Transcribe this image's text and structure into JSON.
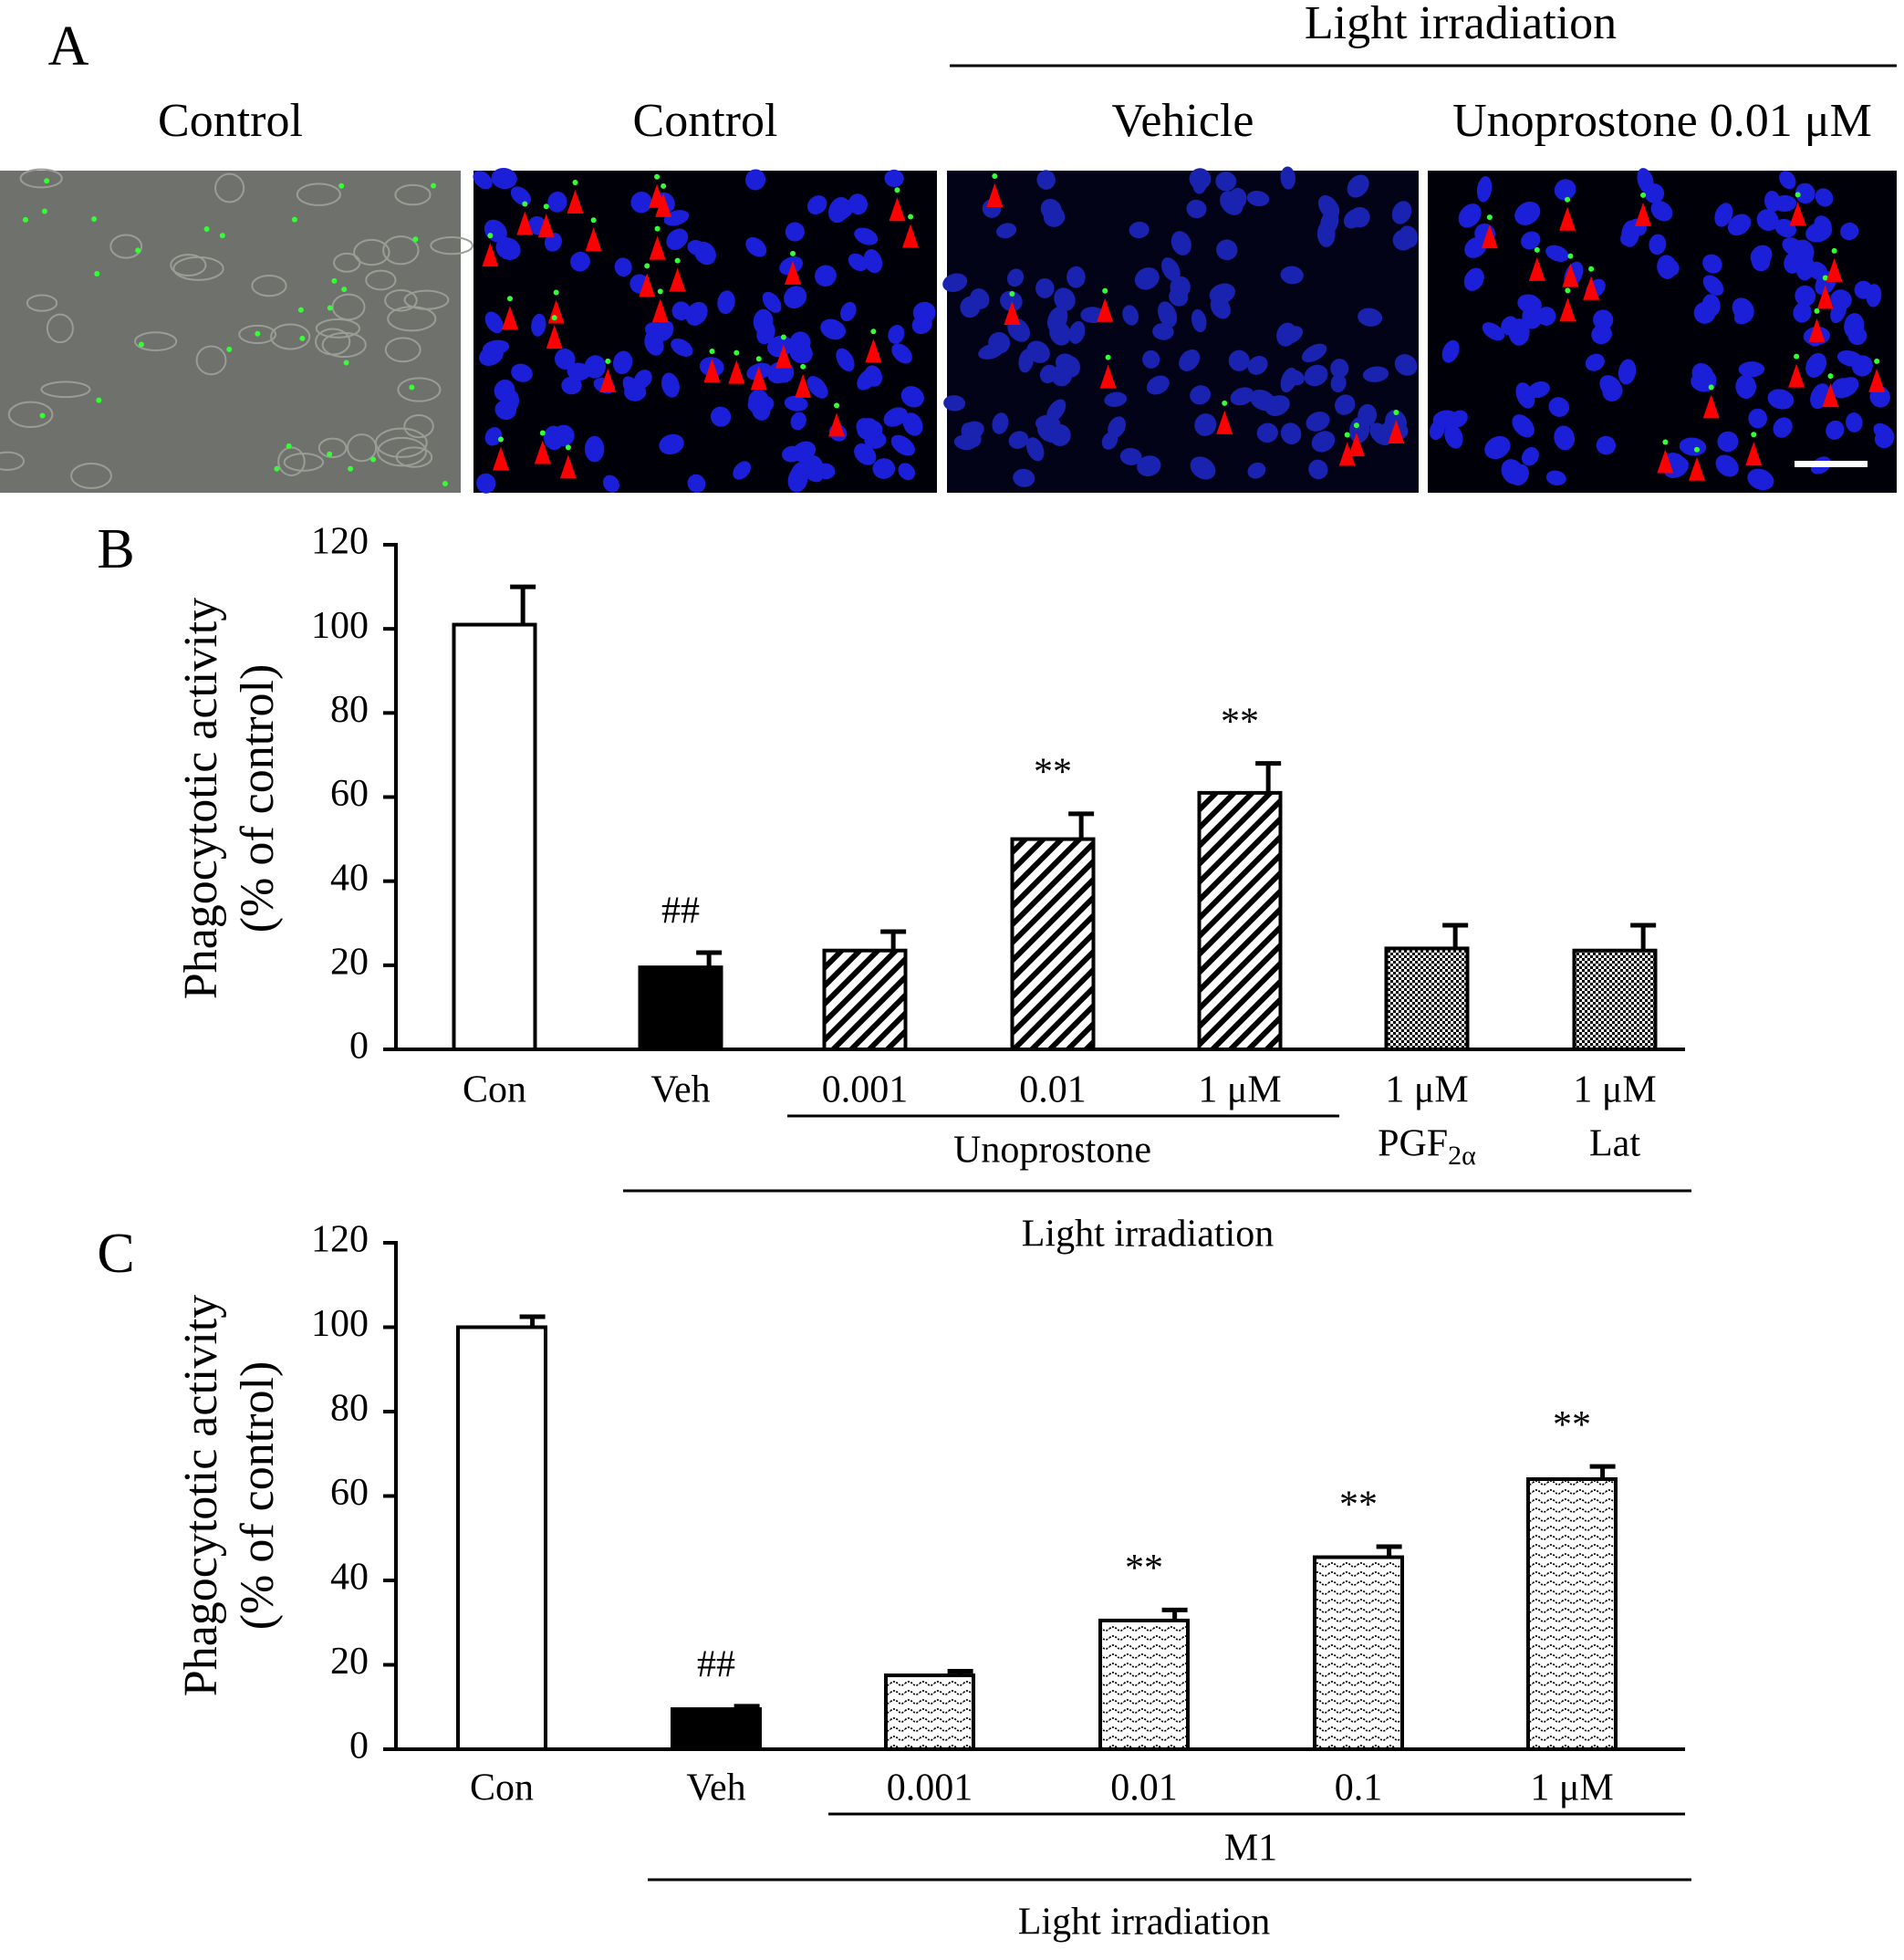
{
  "panel_a": {
    "label": "A",
    "group_label": "Light irradiation",
    "image_titles": [
      "Control",
      "Control",
      "Vehicle",
      "Unoprostone 0.01 μM"
    ]
  },
  "chart_data": [
    {
      "type": "bar",
      "panel_label": "B",
      "y_label": [
        "Phagocytotic activity",
        "(% of control)"
      ],
      "categories": [
        "Con",
        "Veh",
        "0.001",
        "0.01",
        "1 μM",
        "1 μM",
        "1 μM"
      ],
      "category_sublabels": [
        null,
        null,
        null,
        null,
        null,
        {
          "text": "PGF",
          "subscript": "2α"
        },
        {
          "text": "Lat"
        }
      ],
      "values": [
        101,
        19.5,
        23.5,
        50,
        61,
        24,
        23.5
      ],
      "errors": [
        9,
        3.5,
        4.5,
        6,
        7,
        5.5,
        6
      ],
      "patterns": [
        "white",
        "black",
        "hatch",
        "hatch",
        "hatch",
        "dots",
        "dots"
      ],
      "value_annotations": [
        null,
        "##",
        null,
        "**",
        "**",
        null,
        null
      ],
      "group_labels": [
        "Unoprostone",
        "Light irradiation"
      ],
      "ylim": [
        0,
        120
      ],
      "yticks": [
        0,
        20,
        40,
        60,
        80,
        100,
        120
      ]
    },
    {
      "type": "bar",
      "panel_label": "C",
      "y_label": [
        "Phagocytotic activity",
        "(% of control)"
      ],
      "categories": [
        "Con",
        "Veh",
        "0.001",
        "0.01",
        "0.1",
        "1 μM"
      ],
      "category_sublabels": [
        null,
        null,
        null,
        null,
        null,
        null
      ],
      "values": [
        100,
        9.5,
        17.5,
        30.5,
        45.5,
        64
      ],
      "errors": [
        2.5,
        0.7,
        1,
        2.5,
        2.5,
        3
      ],
      "patterns": [
        "white",
        "black",
        "wave",
        "wave",
        "wave",
        "wave"
      ],
      "value_annotations": [
        null,
        "##",
        null,
        "**",
        "**",
        "**"
      ],
      "group_labels": [
        "M1",
        "Light irradiation"
      ],
      "ylim": [
        0,
        120
      ],
      "yticks": [
        0,
        20,
        40,
        60,
        80,
        100,
        120
      ]
    }
  ]
}
